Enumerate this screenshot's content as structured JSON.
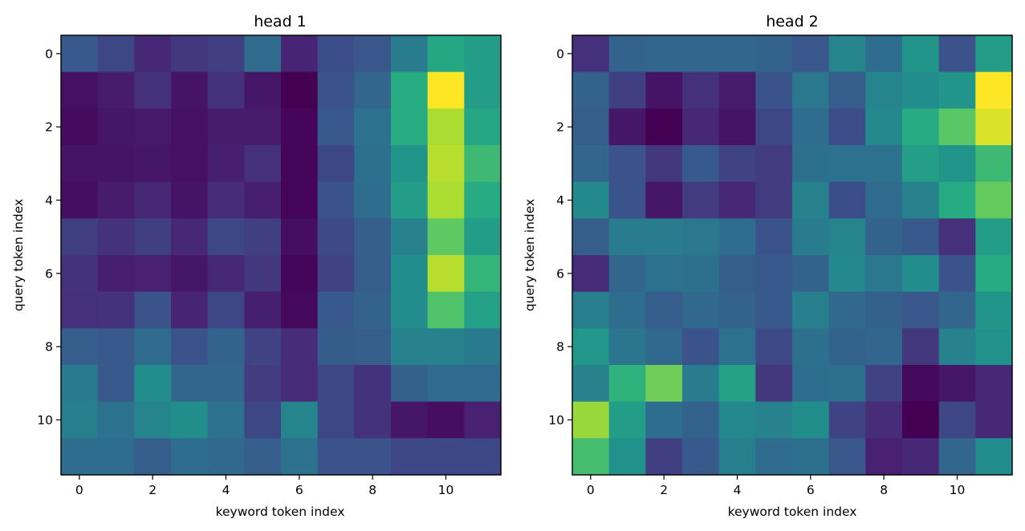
{
  "chart_data": [
    {
      "type": "heatmap",
      "title": "head 1",
      "xlabel": "keyword token index",
      "ylabel": "query token index",
      "x_ticks": [
        "0",
        "2",
        "4",
        "6",
        "8",
        "10"
      ],
      "y_ticks": [
        "0",
        "2",
        "4",
        "6",
        "8",
        "10"
      ],
      "colormap": "viridis",
      "value_range": [
        0,
        1
      ],
      "values": [
        [
          0.28,
          0.22,
          0.14,
          0.18,
          0.2,
          0.35,
          0.13,
          0.24,
          0.27,
          0.42,
          0.6,
          0.55
        ],
        [
          0.06,
          0.1,
          0.17,
          0.07,
          0.17,
          0.08,
          0.0,
          0.26,
          0.33,
          0.63,
          1.0,
          0.55
        ],
        [
          0.04,
          0.08,
          0.09,
          0.06,
          0.1,
          0.1,
          0.02,
          0.28,
          0.38,
          0.63,
          0.88,
          0.6
        ],
        [
          0.07,
          0.07,
          0.08,
          0.06,
          0.11,
          0.16,
          0.02,
          0.22,
          0.37,
          0.52,
          0.9,
          0.68
        ],
        [
          0.05,
          0.1,
          0.14,
          0.07,
          0.15,
          0.11,
          0.01,
          0.26,
          0.36,
          0.55,
          0.88,
          0.62
        ],
        [
          0.2,
          0.17,
          0.2,
          0.14,
          0.22,
          0.2,
          0.05,
          0.23,
          0.3,
          0.44,
          0.75,
          0.55
        ],
        [
          0.17,
          0.11,
          0.12,
          0.08,
          0.14,
          0.18,
          0.02,
          0.21,
          0.3,
          0.48,
          0.9,
          0.66
        ],
        [
          0.16,
          0.17,
          0.26,
          0.13,
          0.22,
          0.11,
          0.03,
          0.28,
          0.32,
          0.48,
          0.72,
          0.57
        ],
        [
          0.3,
          0.28,
          0.35,
          0.26,
          0.32,
          0.21,
          0.15,
          0.29,
          0.3,
          0.44,
          0.44,
          0.41
        ],
        [
          0.41,
          0.28,
          0.48,
          0.33,
          0.33,
          0.19,
          0.15,
          0.22,
          0.17,
          0.31,
          0.35,
          0.35
        ],
        [
          0.43,
          0.38,
          0.45,
          0.49,
          0.38,
          0.22,
          0.45,
          0.22,
          0.17,
          0.08,
          0.05,
          0.12
        ],
        [
          0.36,
          0.36,
          0.3,
          0.36,
          0.34,
          0.3,
          0.38,
          0.25,
          0.25,
          0.22,
          0.22,
          0.22
        ]
      ]
    },
    {
      "type": "heatmap",
      "title": "head 2",
      "xlabel": "keyword token index",
      "ylabel": "query token index",
      "x_ticks": [
        "0",
        "2",
        "4",
        "6",
        "8",
        "10"
      ],
      "y_ticks": [
        "0",
        "2",
        "4",
        "6",
        "8",
        "10"
      ],
      "colormap": "viridis",
      "value_range": [
        0,
        1
      ],
      "values": [
        [
          0.16,
          0.32,
          0.33,
          0.33,
          0.33,
          0.32,
          0.27,
          0.45,
          0.36,
          0.52,
          0.25,
          0.55
        ],
        [
          0.32,
          0.2,
          0.07,
          0.16,
          0.1,
          0.26,
          0.4,
          0.3,
          0.45,
          0.48,
          0.52,
          1.0
        ],
        [
          0.3,
          0.08,
          0.0,
          0.14,
          0.07,
          0.22,
          0.36,
          0.24,
          0.47,
          0.62,
          0.74,
          0.95
        ],
        [
          0.33,
          0.25,
          0.18,
          0.28,
          0.21,
          0.19,
          0.37,
          0.38,
          0.38,
          0.56,
          0.52,
          0.68
        ],
        [
          0.47,
          0.26,
          0.08,
          0.19,
          0.14,
          0.19,
          0.44,
          0.24,
          0.35,
          0.44,
          0.62,
          0.76
        ],
        [
          0.3,
          0.42,
          0.42,
          0.4,
          0.36,
          0.26,
          0.42,
          0.45,
          0.32,
          0.28,
          0.16,
          0.55
        ],
        [
          0.15,
          0.33,
          0.38,
          0.37,
          0.3,
          0.28,
          0.32,
          0.47,
          0.4,
          0.48,
          0.26,
          0.62
        ],
        [
          0.43,
          0.36,
          0.3,
          0.34,
          0.32,
          0.28,
          0.43,
          0.34,
          0.31,
          0.27,
          0.33,
          0.52
        ],
        [
          0.53,
          0.39,
          0.34,
          0.26,
          0.38,
          0.23,
          0.37,
          0.32,
          0.33,
          0.18,
          0.44,
          0.5
        ],
        [
          0.44,
          0.65,
          0.78,
          0.42,
          0.58,
          0.18,
          0.36,
          0.37,
          0.21,
          0.03,
          0.08,
          0.14
        ],
        [
          0.85,
          0.55,
          0.36,
          0.32,
          0.47,
          0.44,
          0.49,
          0.21,
          0.15,
          0.0,
          0.22,
          0.14
        ],
        [
          0.7,
          0.5,
          0.2,
          0.28,
          0.43,
          0.35,
          0.37,
          0.27,
          0.12,
          0.14,
          0.33,
          0.48
        ]
      ]
    }
  ]
}
